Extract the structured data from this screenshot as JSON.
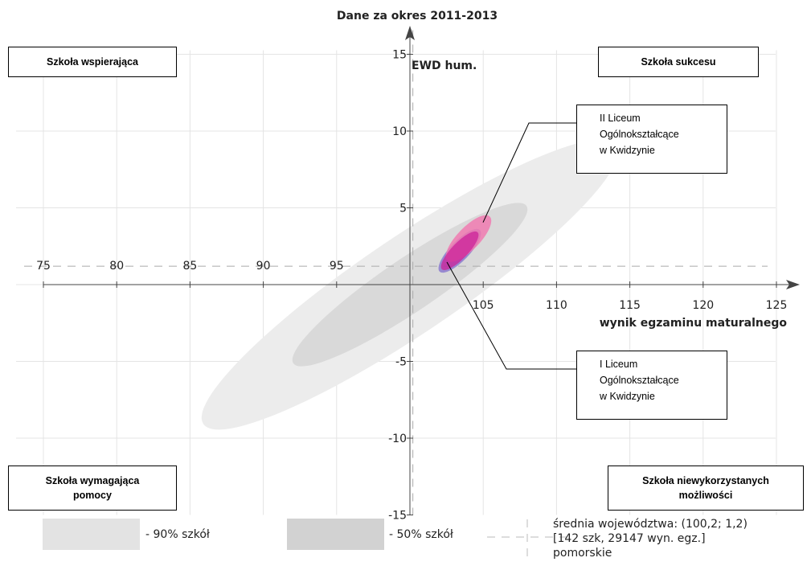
{
  "chart_data": {
    "type": "scatter",
    "title": "Dane za okres 2011-2013",
    "xlabel": "wynik egzaminu maturalnego",
    "ylabel": "EWD hum.",
    "xlim": [
      75,
      125
    ],
    "ylim": [
      -15,
      15
    ],
    "x_ticks_upper": [
      75,
      80,
      85,
      90,
      95
    ],
    "x_ticks_lower": [
      105,
      110,
      115,
      120,
      125
    ],
    "y_ticks": [
      15,
      10,
      5,
      -5,
      -10,
      -15
    ],
    "average": {
      "x": 100.2,
      "y": 1.2
    },
    "regions": [
      {
        "name": "- 90% szkół",
        "center": [
          100,
          0
        ],
        "color": "#ececec"
      },
      {
        "name": "- 50% szkół",
        "center": [
          100,
          0
        ],
        "color": "#d9d9d9"
      }
    ],
    "schools": [
      {
        "name": "II Liceum\nOgólnokształcące\nw Kwidzynie",
        "x": 104.0,
        "y": 3.0,
        "color": "#f07ab0"
      },
      {
        "name": "I Liceum\nOgólnokształcące\nw Kwidzynie",
        "x": 103.4,
        "y": 2.2,
        "color": "#cc2299"
      }
    ],
    "grid": true
  },
  "quadrants": {
    "top_left": "Szkoła wspierająca",
    "top_right": "Szkoła sukcesu",
    "bottom_left": "Szkoła wymagająca\npomocy",
    "bottom_right": "Szkoła niewykorzystanych\nmożliwości"
  },
  "legend": {
    "p90": "- 90% szkół",
    "p50": "- 50% szkół",
    "average": "średnia województwa: (100,2; 1,2)\n[142 szk, 29147 wyn. egz.]\npomorskie",
    "p90_color": "#e3e3e3",
    "p50_color": "#d2d2d2"
  }
}
